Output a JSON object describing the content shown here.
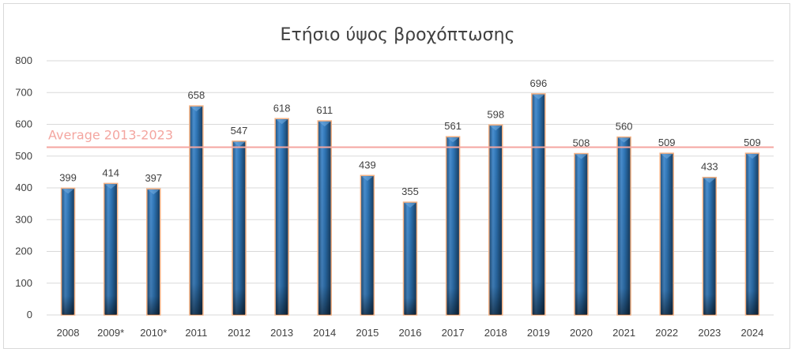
{
  "chart_data": {
    "type": "bar",
    "title": "Ετήσιο ύψος βροχόπτωσης",
    "xlabel": "",
    "ylabel": "",
    "categories": [
      "2008",
      "2009*",
      "2010*",
      "2011",
      "2012",
      "2013",
      "2014",
      "2015",
      "2016",
      "2017",
      "2018",
      "2019",
      "2020",
      "2021",
      "2022",
      "2023",
      "2024"
    ],
    "values": [
      399,
      414,
      397,
      658,
      547,
      618,
      611,
      439,
      355,
      561,
      598,
      696,
      508,
      560,
      509,
      433,
      509
    ],
    "ylim": [
      0,
      800
    ],
    "yticks": [
      "0",
      "100",
      "200",
      "300",
      "400",
      "500",
      "600",
      "700",
      "800"
    ],
    "grid": true,
    "legend": "none",
    "reference_line": {
      "label": "Average 2013-2023",
      "value": 528,
      "color": "#f4a6a0"
    },
    "colors": {
      "bar_fill": "#2e75b6",
      "bar_dark": "#1f4e79",
      "bar_outline": "#f4b183",
      "grid": "#d9d9d9",
      "text": "#404040"
    }
  }
}
